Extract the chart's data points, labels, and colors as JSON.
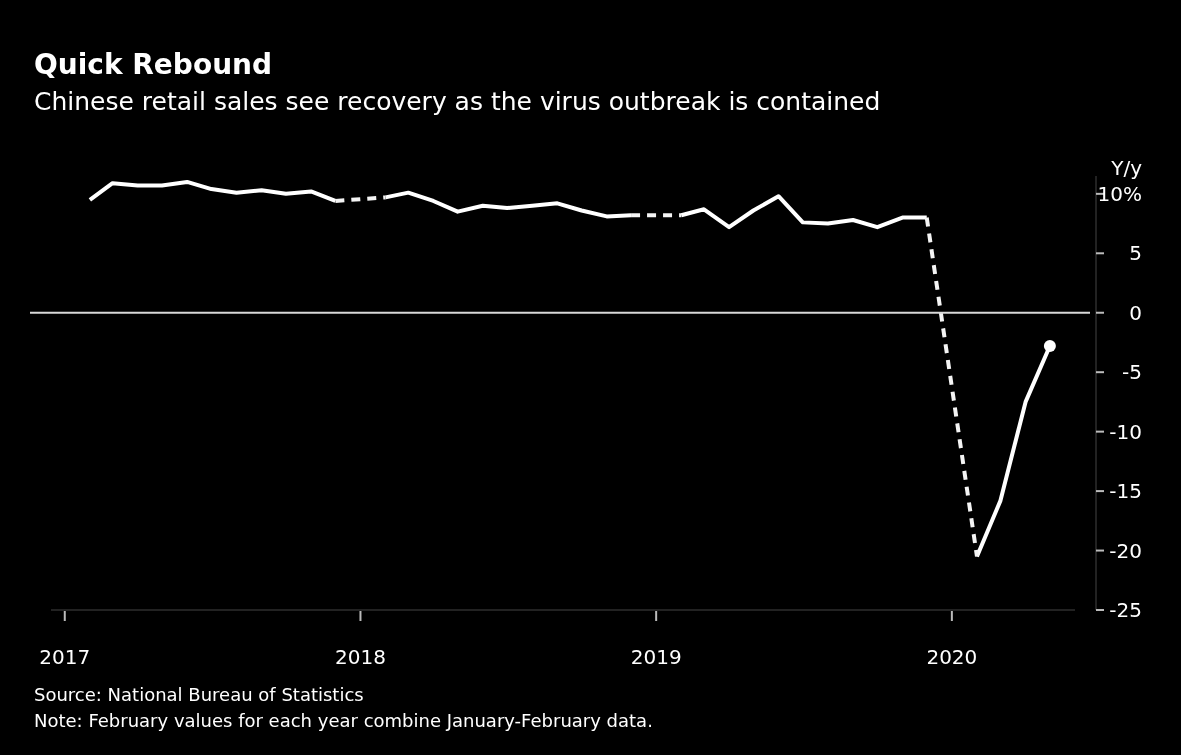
{
  "chart_data": {
    "type": "line",
    "title": "Quick Rebound",
    "subtitle": "Chinese retail sales see recovery as the virus outbreak is contained",
    "ylabel": "Y/y",
    "series": [
      {
        "color": "#ffffff",
        "line_style": "solid",
        "marker": "none",
        "x": [
          "2017-02",
          "2017-03",
          "2017-04",
          "2017-05",
          "2017-06",
          "2017-07",
          "2017-08",
          "2017-09",
          "2017-10",
          "2017-11",
          "2017-12",
          "2018-01",
          "2018-02",
          "2018-03",
          "2018-04",
          "2018-05",
          "2018-06",
          "2018-07",
          "2018-08",
          "2018-09",
          "2018-10",
          "2018-11",
          "2018-12",
          "2019-01",
          "2019-02",
          "2019-03",
          "2019-04",
          "2019-05",
          "2019-06",
          "2019-07",
          "2019-08",
          "2019-09",
          "2019-10",
          "2019-11",
          "2019-12",
          "2020-01",
          "2020-02",
          "2020-03",
          "2020-04",
          "2020-05"
        ],
        "values": [
          9.5,
          10.9,
          10.7,
          10.7,
          11.0,
          10.4,
          10.1,
          10.3,
          10.0,
          10.2,
          9.4,
          null,
          9.7,
          10.1,
          9.4,
          8.5,
          9.0,
          8.8,
          9.0,
          9.2,
          8.6,
          8.1,
          8.2,
          null,
          8.2,
          8.7,
          7.2,
          8.6,
          9.8,
          7.6,
          7.5,
          7.8,
          7.2,
          8.0,
          8.0,
          null,
          -20.5,
          -15.8,
          -7.5,
          -2.8
        ]
      },
      {
        "color": "#f4f4f4",
        "line_style": "dashed",
        "marker": "none",
        "x": [
          "2017-12",
          "2018-02",
          "2018-06",
          "2018-12",
          "2019-02",
          "2019-06",
          "2019-12",
          "2020-02"
        ],
        "values": [
          9.4,
          9.7,
          null,
          8.2,
          8.2,
          null,
          8.0,
          -20.5
        ]
      },
      {
        "type": "scatter",
        "color": "#ffffff",
        "marker": "circle",
        "x": [
          "2020-05"
        ],
        "values": [
          -2.8
        ]
      }
    ],
    "xlim": [
      "2016-12-15",
      "2020-06-01"
    ],
    "xticks": [
      "2017",
      "2018",
      "2019",
      "2020"
    ],
    "ylim": [
      -25,
      11.5
    ],
    "yticks": [
      {
        "value": 10,
        "label": "10%"
      },
      5,
      0,
      -5,
      -10,
      -15,
      -20,
      -25
    ],
    "ref_lines": [
      {
        "axis": "y",
        "value": 0,
        "color": "#d9d9d9"
      }
    ],
    "grid": false,
    "annotations": [
      "Source: National Bureau of Statistics",
      "Note: February values for each year combine January-February data."
    ]
  }
}
